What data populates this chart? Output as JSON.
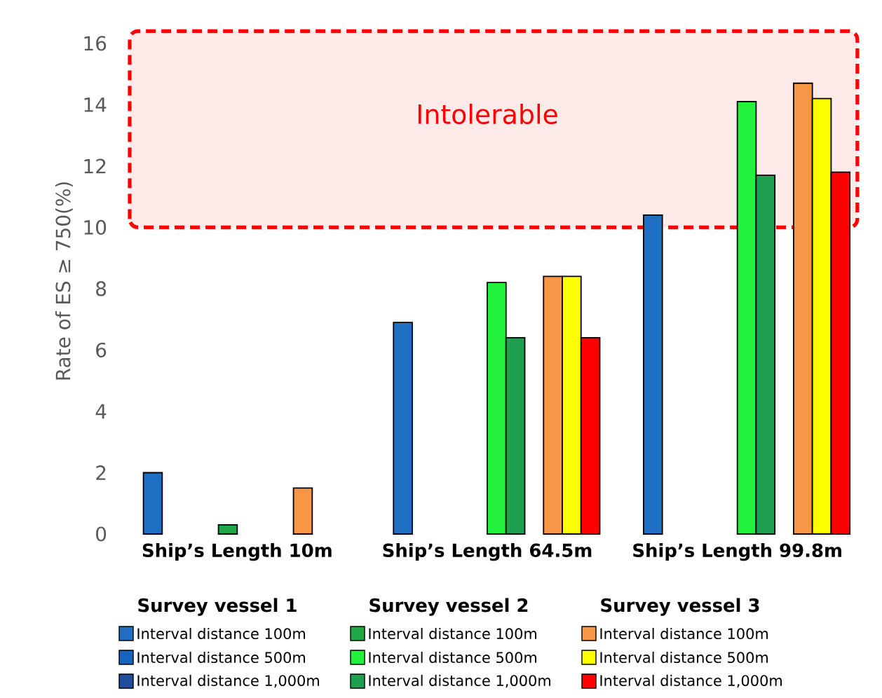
{
  "chart_data": {
    "type": "bar",
    "ylabel": "Rate of ES ≥ 750(%)",
    "categories": [
      "Ship’s Length 10m",
      "Ship’s Length 64.5m",
      "Ship’s Length 99.8m"
    ],
    "series": [
      {
        "name": "Interval distance 100m",
        "color": "#1f6fc4",
        "values": [
          2.0,
          6.9,
          10.4
        ]
      },
      {
        "name": "Interval distance 500m",
        "color": "#1565c0",
        "values": [
          null,
          null,
          null
        ]
      },
      {
        "name": "Interval distance 1,000m",
        "color": "#1f4e9c",
        "values": [
          null,
          null,
          null
        ]
      },
      {
        "name": "Interval distance 100m",
        "color": "#22a845",
        "values": [
          0.3,
          null,
          null
        ]
      },
      {
        "name": "Interval distance 500m",
        "color": "#22f23c",
        "values": [
          null,
          8.2,
          14.1
        ]
      },
      {
        "name": "Interval distance 1,000m",
        "color": "#1fa050",
        "values": [
          null,
          6.4,
          11.7
        ]
      },
      {
        "name": "Interval distance 100m",
        "color": "#f79646",
        "values": [
          1.5,
          8.4,
          14.7
        ]
      },
      {
        "name": "Interval distance 500m",
        "color": "#ffff00",
        "values": [
          null,
          8.4,
          14.2
        ]
      },
      {
        "name": "Interval distance 1,000m",
        "color": "#ff0000",
        "values": [
          null,
          6.4,
          11.8
        ]
      }
    ],
    "annotations": [
      "Survey vessel 1",
      "Survey vessel 2",
      "Survey vessel 3"
    ],
    "bands": [
      {
        "axis": "y",
        "from": 10,
        "to": 16.4,
        "label": "Intolerable",
        "color": "#ff0000"
      }
    ],
    "ylim": [
      0,
      16.5
    ],
    "yticks": [
      0,
      2,
      4,
      6,
      8,
      10,
      12,
      14,
      16
    ],
    "legend": "bottom"
  }
}
